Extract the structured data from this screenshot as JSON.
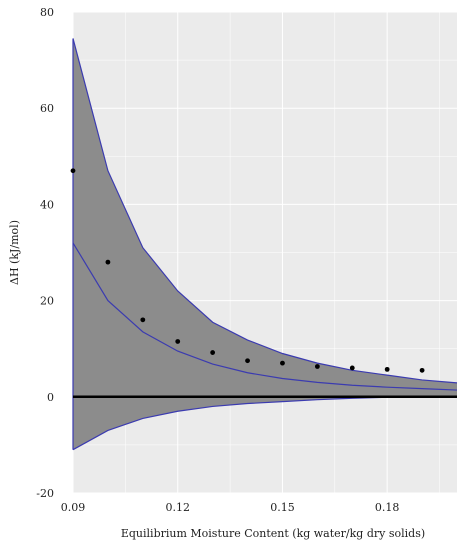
{
  "chart_data": {
    "type": "line",
    "title": "",
    "xlabel": "Equilibrium Moisture Content (kg water/kg dry solids)",
    "ylabel": "ΔH (kJ/mol)",
    "xlim": [
      0.09,
      0.2
    ],
    "ylim": [
      -20,
      80
    ],
    "x_ticks": [
      0.09,
      0.12,
      0.15,
      0.18
    ],
    "x_tick_labels": [
      "0.09",
      "0.12",
      "0.15",
      "0.18"
    ],
    "y_ticks": [
      -20,
      0,
      20,
      40,
      60,
      80
    ],
    "y_tick_labels": [
      "-20",
      "0",
      "20",
      "40",
      "60",
      "80"
    ],
    "grid": true,
    "legend": "none",
    "colors": {
      "plot_background": "#ebebeb",
      "band_fill": "#8c8c8c",
      "band_edge": "#3b3bb0",
      "zero_line": "#000000",
      "points": "#000000",
      "grid": "#ffffff"
    },
    "series": [
      {
        "role": "upper-band",
        "x": [
          0.09,
          0.1,
          0.11,
          0.12,
          0.13,
          0.14,
          0.15,
          0.16,
          0.17,
          0.18,
          0.19,
          0.2
        ],
        "values": [
          74.5,
          47,
          31,
          22,
          15.5,
          11.8,
          9,
          7,
          5.5,
          4.5,
          3.5,
          2.9
        ]
      },
      {
        "role": "lower-band",
        "x": [
          0.09,
          0.1,
          0.11,
          0.12,
          0.13,
          0.14,
          0.15,
          0.16,
          0.17,
          0.18,
          0.19,
          0.2
        ],
        "values": [
          -11,
          -7,
          -4.5,
          -3,
          -2,
          -1.4,
          -1,
          -0.6,
          -0.3,
          -0.1,
          0,
          0
        ]
      },
      {
        "role": "fitted-curve",
        "x": [
          0.09,
          0.1,
          0.11,
          0.12,
          0.13,
          0.14,
          0.15,
          0.16,
          0.17,
          0.18,
          0.19,
          0.2
        ],
        "values": [
          32,
          20,
          13.5,
          9.5,
          6.8,
          5,
          3.8,
          3,
          2.4,
          2,
          1.7,
          1.4
        ]
      },
      {
        "role": "observed-points",
        "x": [
          0.09,
          0.1,
          0.11,
          0.12,
          0.13,
          0.14,
          0.15,
          0.16,
          0.17,
          0.18,
          0.19
        ],
        "values": [
          47,
          28,
          16,
          11.5,
          9.2,
          7.5,
          7,
          6.3,
          6,
          5.7,
          5.5
        ]
      }
    ],
    "reference_line": {
      "y": 0
    }
  }
}
